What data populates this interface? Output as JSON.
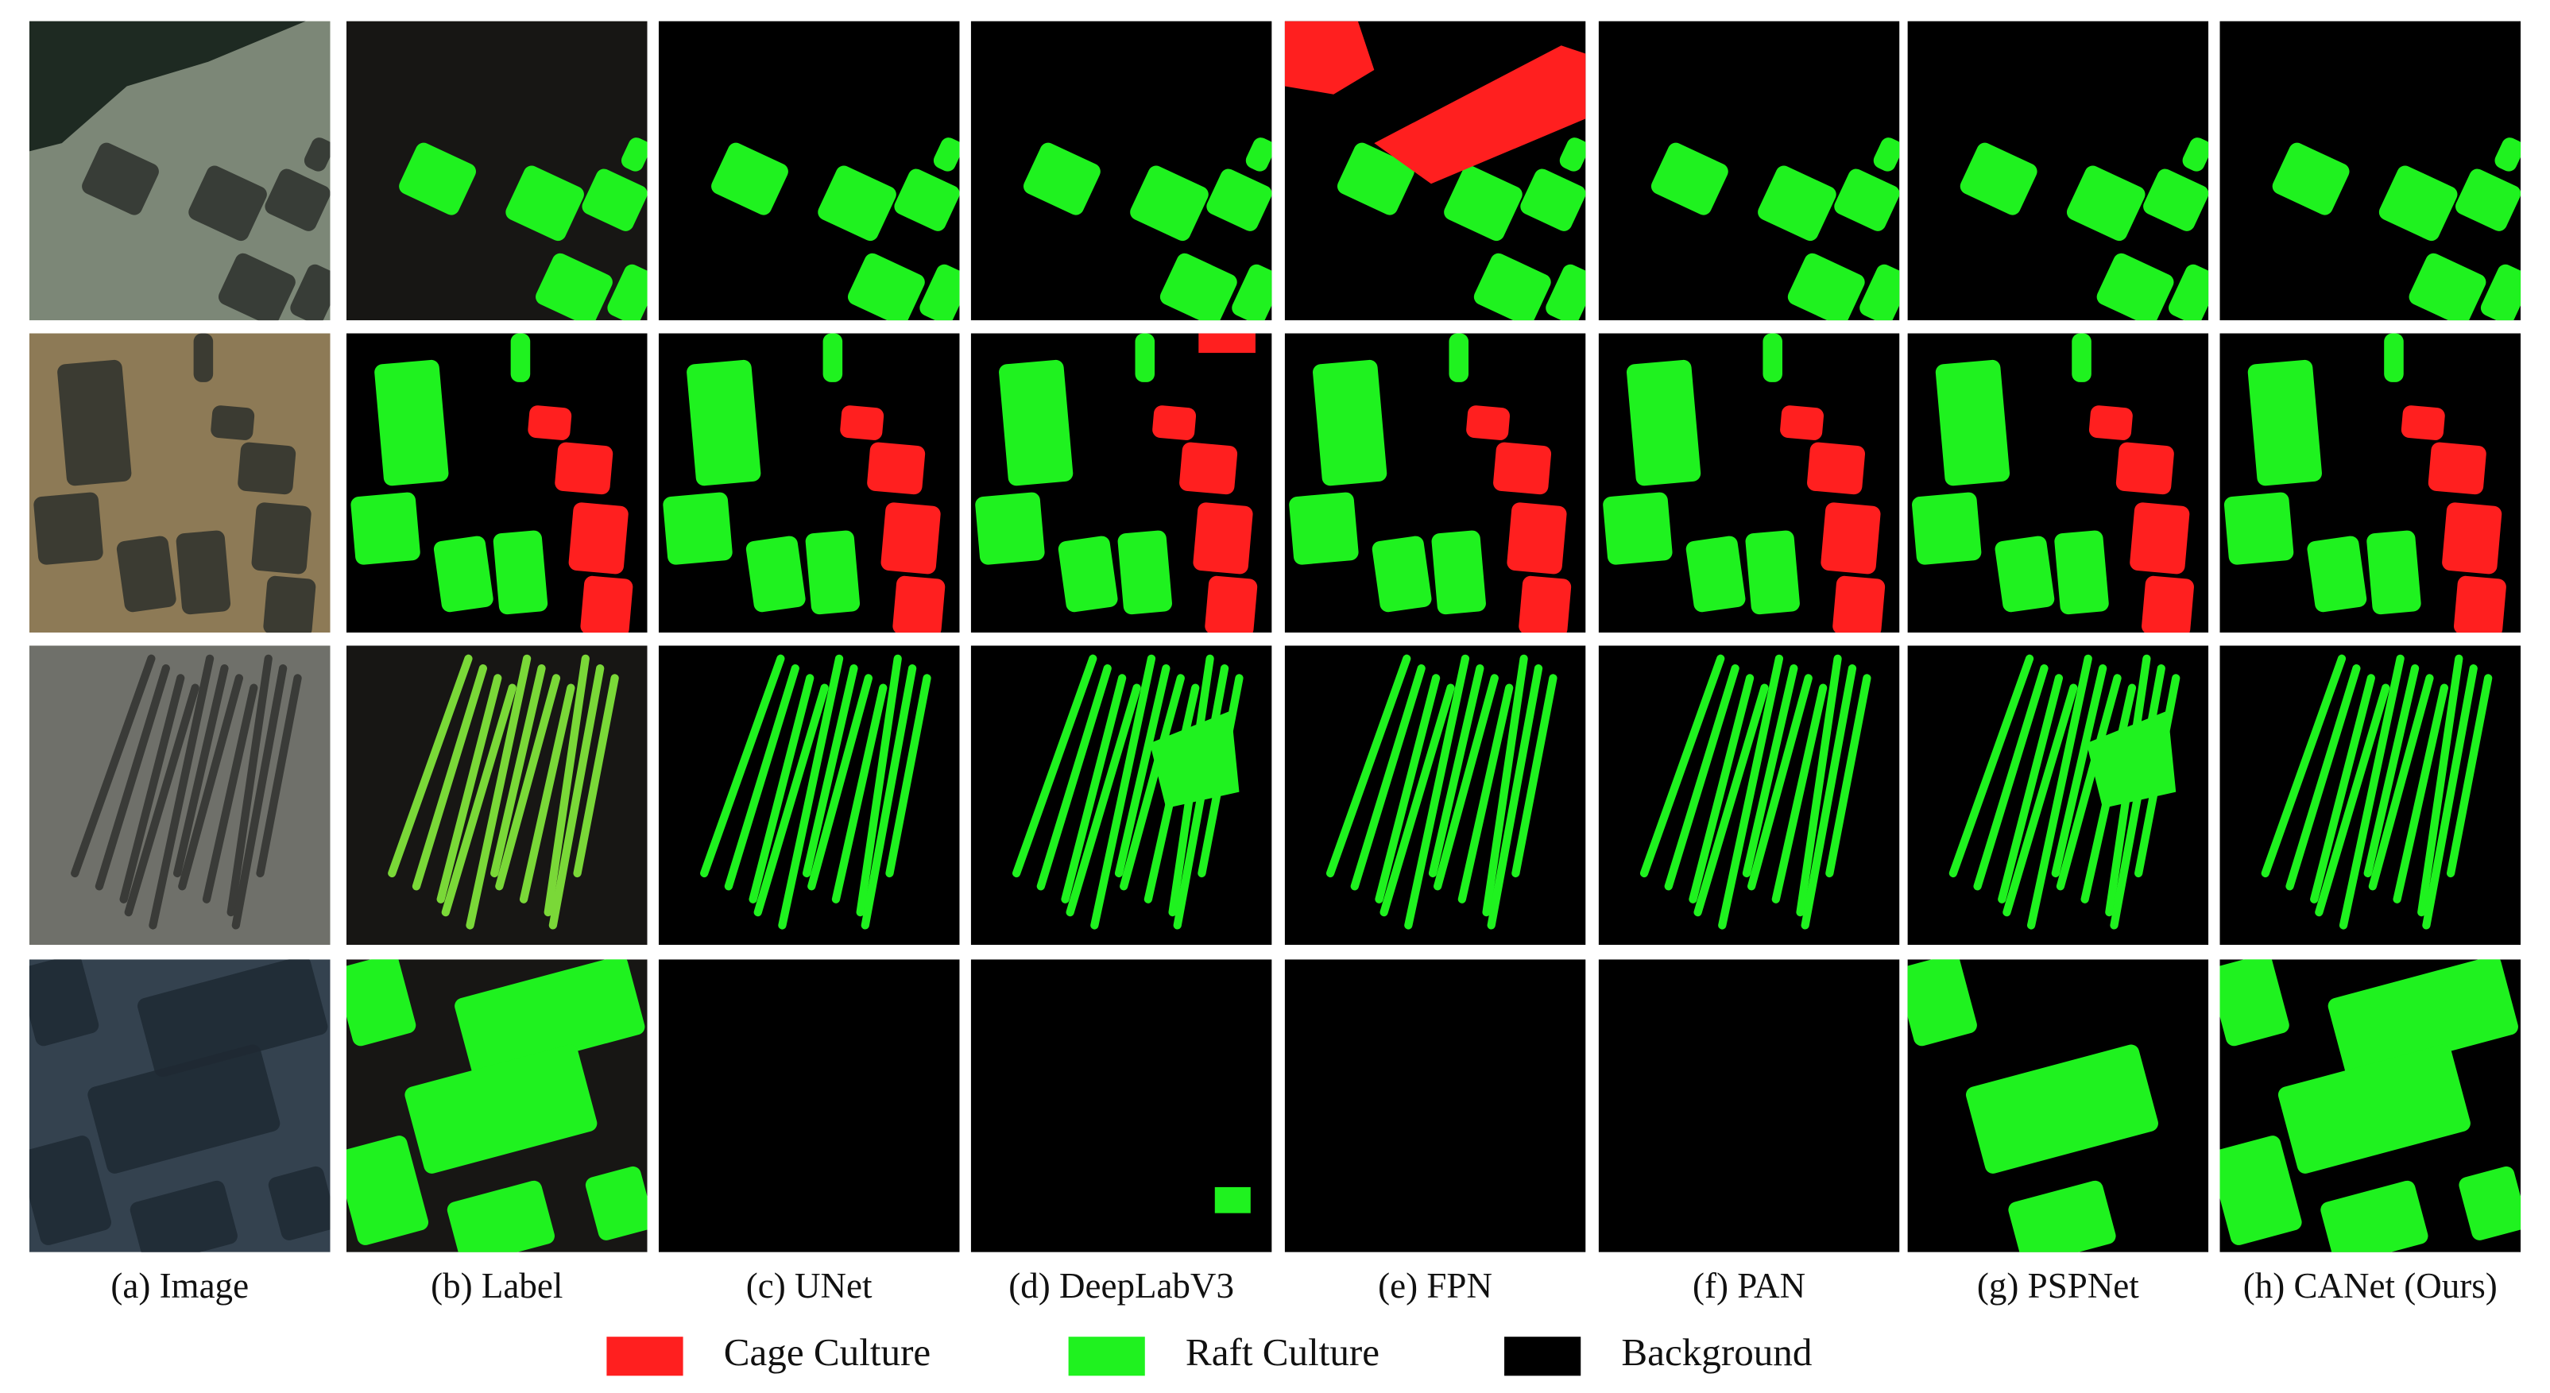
{
  "columns": [
    "(a) Image",
    "(b) Label",
    "(c) UNet",
    "(d) DeepLabV3",
    "(e) FPN",
    "(f) PAN",
    "(g) PSPNet",
    "(h) CANet (Ours)"
  ],
  "legend": [
    {
      "label": "Cage Culture",
      "color": "#ff1f1f"
    },
    {
      "label": "Raft Culture",
      "color": "#1ff21f"
    },
    {
      "label": "Background",
      "color": "#000000"
    }
  ]
}
